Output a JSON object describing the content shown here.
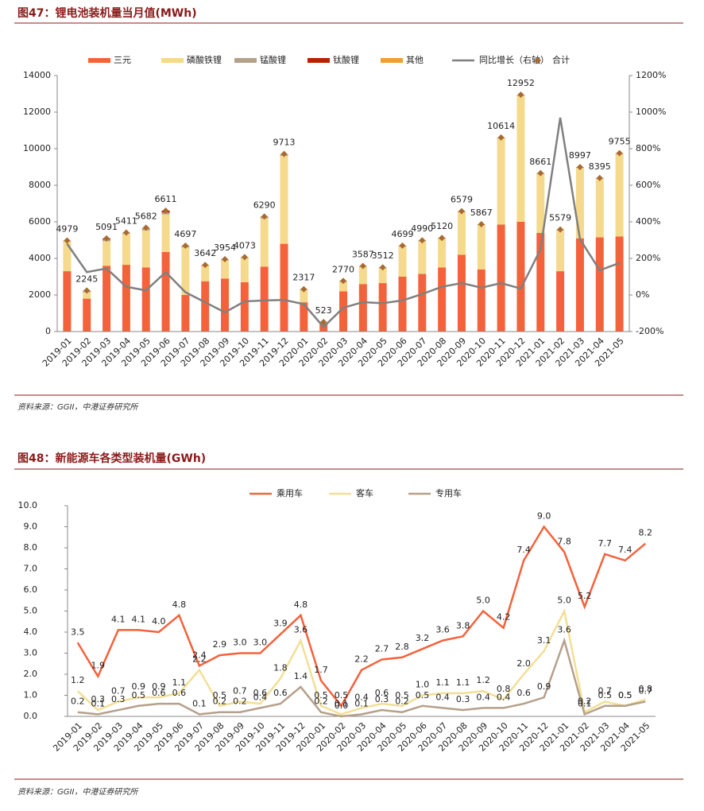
{
  "chart_data": [
    {
      "type": "bar",
      "title": "图47：锂电池装机量当月值(MWh)",
      "source": "资料来源：GGII，中港证券研究所",
      "stacked": true,
      "legend": "top",
      "categories": [
        "2019-01",
        "2019-02",
        "2019-03",
        "2019-04",
        "2019-05",
        "2019-06",
        "2019-07",
        "2019-08",
        "2019-09",
        "2019-10",
        "2019-11",
        "2019-12",
        "2020-01",
        "2020-02",
        "2020-03",
        "2020-04",
        "2020-05",
        "2020-06",
        "2020-07",
        "2020-08",
        "2020-09",
        "2020-10",
        "2020-11",
        "2020-12",
        "2021-01",
        "2021-02",
        "2021-03",
        "2021-04",
        "2021-05"
      ],
      "ylim": [
        0,
        14000
      ],
      "yticks": [
        0,
        2000,
        4000,
        6000,
        8000,
        10000,
        12000,
        14000
      ],
      "y2lim": [
        -200,
        1200
      ],
      "y2ticks": [
        {
          "value": -200,
          "label": "-200%"
        },
        {
          "value": 0,
          "label": "0%"
        },
        {
          "value": 200,
          "label": "200%"
        },
        {
          "value": 400,
          "label": "400%"
        },
        {
          "value": 600,
          "label": "600%"
        },
        {
          "value": 800,
          "label": "800%"
        },
        {
          "value": 1000,
          "label": "1000%"
        },
        {
          "value": 1200,
          "label": "1200%"
        }
      ],
      "series": [
        {
          "name": "三元",
          "color": "#f4623c",
          "values": [
            3300,
            1800,
            3600,
            3650,
            3500,
            4350,
            2000,
            2750,
            2900,
            2700,
            3550,
            4800,
            1600,
            450,
            2200,
            2600,
            2650,
            3000,
            3150,
            3500,
            4200,
            3400,
            5850,
            6000,
            5400,
            3300,
            5100,
            5150,
            5200
          ]
        },
        {
          "name": "磷酸铁锂",
          "color": "#f5d98c",
          "values": [
            1630,
            350,
            1340,
            1700,
            2030,
            2060,
            2600,
            840,
            1000,
            1320,
            2640,
            4810,
            670,
            50,
            520,
            940,
            810,
            1650,
            1790,
            1570,
            2330,
            2420,
            4710,
            6900,
            3210,
            2230,
            3850,
            3200,
            4500
          ]
        },
        {
          "name": "锰酸锂",
          "color": "#b5a08a",
          "values": [
            50,
            100,
            100,
            60,
            150,
            100,
            100,
            50,
            50,
            50,
            100,
            100,
            50,
            20,
            50,
            50,
            50,
            50,
            50,
            50,
            50,
            50,
            50,
            50,
            50,
            50,
            50,
            50,
            50
          ]
        },
        {
          "name": "钛酸锂",
          "color": "#b82000",
          "values": [
            0,
            0,
            50,
            0,
            0,
            100,
            0,
            0,
            0,
            0,
            0,
            0,
            0,
            0,
            0,
            0,
            0,
            0,
            0,
            0,
            0,
            0,
            0,
            0,
            0,
            0,
            0,
            0,
            0
          ]
        },
        {
          "name": "其他",
          "color": "#f0a030",
          "values": [
            0,
            0,
            0,
            0,
            0,
            0,
            0,
            0,
            0,
            0,
            0,
            0,
            0,
            0,
            0,
            0,
            0,
            0,
            0,
            0,
            0,
            0,
            0,
            0,
            0,
            0,
            0,
            0,
            0
          ]
        },
        {
          "name": "同比增长（右轴）",
          "type": "line",
          "axis": "y2",
          "color": "#808080",
          "values": [
            280,
            125,
            145,
            45,
            25,
            125,
            15,
            -40,
            -95,
            -35,
            -30,
            -27,
            -50,
            -175,
            -70,
            -39,
            -45,
            -30,
            5,
            45,
            65,
            40,
            65,
            35,
            250,
            970,
            305,
            135,
            175
          ]
        },
        {
          "name": "合计",
          "type": "scatter",
          "marker": "diamond",
          "color": "#a86a30",
          "values": [
            4979,
            2245,
            5091,
            5411,
            5682,
            6611,
            4697,
            3642,
            3954,
            4073,
            6290,
            9713,
            2317,
            523,
            2770,
            3587,
            3512,
            4699,
            4990,
            5120,
            6579,
            5867,
            10614,
            12952,
            8661,
            5579,
            8997,
            8395,
            9755
          ]
        }
      ]
    },
    {
      "type": "line",
      "title": "图48：新能源车各类型装机量(GWh)",
      "source": "资料来源：GGII，中港证券研究所",
      "legend": "top",
      "categories": [
        "2019-01",
        "2019-02",
        "2019-03",
        "2019-04",
        "2019-05",
        "2019-06",
        "2019-07",
        "2019-08",
        "2019-09",
        "2019-10",
        "2019-11",
        "2019-12",
        "2020-01",
        "2020-02",
        "2020-03",
        "2020-04",
        "2020-05",
        "2020-06",
        "2020-07",
        "2020-08",
        "2020-09",
        "2020-10",
        "2020-11",
        "2020-12",
        "2021-01",
        "2021-02",
        "2021-03",
        "2021-04",
        "2021-05"
      ],
      "ylim": [
        0,
        10
      ],
      "yticks": [
        {
          "value": 0,
          "label": "0.0"
        },
        {
          "value": 1,
          "label": "1.0"
        },
        {
          "value": 2,
          "label": "2.0"
        },
        {
          "value": 3,
          "label": "3.0"
        },
        {
          "value": 4,
          "label": "4.0"
        },
        {
          "value": 5,
          "label": "5.0"
        },
        {
          "value": 6,
          "label": "6.0"
        },
        {
          "value": 7,
          "label": "7.0"
        },
        {
          "value": 8,
          "label": "8.0"
        },
        {
          "value": 9,
          "label": "9.0"
        },
        {
          "value": 10,
          "label": "10.0"
        }
      ],
      "series": [
        {
          "name": "乘用车",
          "color": "#f4623c",
          "values": [
            3.5,
            1.9,
            4.1,
            4.1,
            4.0,
            4.8,
            2.4,
            2.9,
            3.0,
            3.0,
            3.9,
            4.8,
            1.7,
            0.5,
            2.2,
            2.7,
            2.8,
            3.2,
            3.6,
            3.8,
            5.0,
            4.2,
            7.4,
            9.0,
            7.8,
            5.2,
            7.7,
            7.4,
            8.2
          ],
          "value_labels": [
            "3.5",
            "1.9",
            "4.1",
            "4.1",
            "4.0",
            "4.8",
            "2.4",
            "2.9",
            "3.0",
            "3.0",
            "3.9",
            "4.8",
            "1.7",
            "0.5",
            "2.2",
            "2.7",
            "2.8",
            "3.2",
            "3.6",
            "3.8",
            "5.0",
            "4.2",
            "7.4",
            "9.0",
            "7.8",
            "5.2",
            "7.7",
            "7.4",
            "8.2"
          ]
        },
        {
          "name": "客车",
          "color": "#f2df96",
          "values": [
            1.2,
            0.3,
            0.7,
            0.9,
            0.9,
            1.1,
            2.2,
            0.5,
            0.7,
            0.6,
            1.8,
            3.6,
            0.5,
            0.1,
            0.4,
            0.6,
            0.5,
            1.0,
            1.1,
            1.1,
            1.2,
            0.8,
            2.0,
            3.1,
            5.0,
            0.2,
            0.7,
            0.5,
            0.8
          ],
          "value_labels": [
            "1.2",
            "0.3",
            "0.7",
            "0.9",
            "0.9",
            "1.1",
            "2.2",
            "0.5",
            "0.7",
            "0.6",
            "1.8",
            "3.6",
            "0.5",
            "0.1",
            "0.4",
            "0.6",
            "0.5",
            "1.0",
            "1.1",
            "1.1",
            "1.2",
            "0.8",
            "2.0",
            "3.1",
            "5.0",
            "0.2",
            "0.7",
            "0.5",
            "0.8"
          ]
        },
        {
          "name": "专用车",
          "color": "#b5a08a",
          "values": [
            0.2,
            0.1,
            0.3,
            0.5,
            0.6,
            0.6,
            0.1,
            0.2,
            0.2,
            0.4,
            0.6,
            1.4,
            0.2,
            0.0,
            0.1,
            0.3,
            0.2,
            0.5,
            0.4,
            0.3,
            0.4,
            0.4,
            0.6,
            0.9,
            3.6,
            0.1,
            0.5,
            0.5,
            0.7
          ],
          "value_labels": [
            "0.2",
            "0.1",
            "0.3",
            "0.5",
            "0.6",
            "0.6",
            "0.1",
            "0.2",
            "0.2",
            "0.4",
            "0.6",
            "1.4",
            "0.2",
            "0.0",
            "0.1",
            "0.3",
            "0.2",
            "0.5",
            "0.4",
            "0.3",
            "0.4",
            "0.4",
            "0.6",
            "0.9",
            "3.6",
            "0.1",
            "0.5",
            "0.5",
            "0.7"
          ]
        }
      ]
    }
  ]
}
